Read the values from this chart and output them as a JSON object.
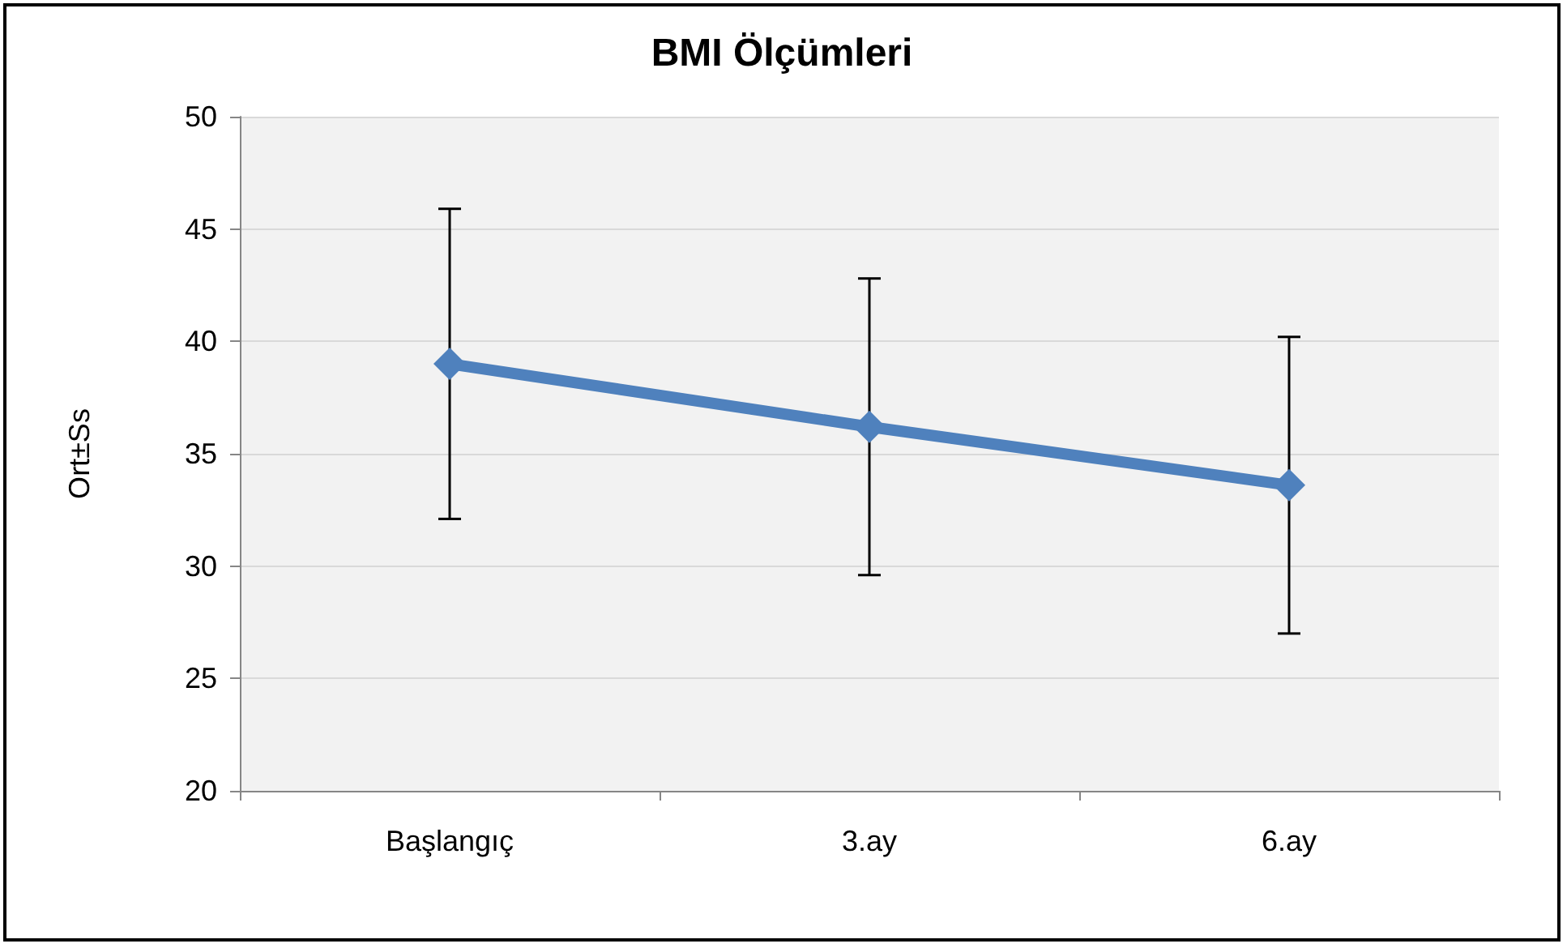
{
  "chart_data": {
    "type": "line",
    "title": "BMI Ölçümleri",
    "ylabel": "Ort±Ss",
    "categories": [
      "Başlangıç",
      "3.ay",
      "6.ay"
    ],
    "series": [
      {
        "color": "#4f81bd",
        "values": [
          39.0,
          36.2,
          33.6
        ],
        "errors": [
          6.9,
          6.6,
          6.6
        ]
      }
    ],
    "ylim": [
      20,
      50
    ],
    "yticks": [
      20,
      25,
      30,
      35,
      40,
      45,
      50
    ],
    "grid": "y",
    "marker": "diamond",
    "line_style": "solid"
  }
}
